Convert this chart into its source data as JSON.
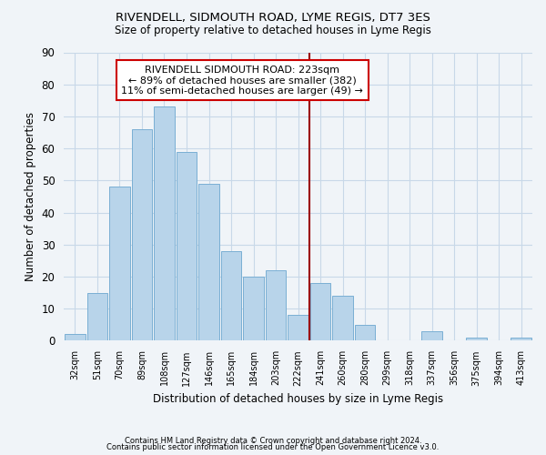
{
  "title": "RIVENDELL, SIDMOUTH ROAD, LYME REGIS, DT7 3ES",
  "subtitle": "Size of property relative to detached houses in Lyme Regis",
  "xlabel": "Distribution of detached houses by size in Lyme Regis",
  "ylabel": "Number of detached properties",
  "footnote1": "Contains HM Land Registry data © Crown copyright and database right 2024.",
  "footnote2": "Contains public sector information licensed under the Open Government Licence v3.0.",
  "bar_labels": [
    "32sqm",
    "51sqm",
    "70sqm",
    "89sqm",
    "108sqm",
    "127sqm",
    "146sqm",
    "165sqm",
    "184sqm",
    "203sqm",
    "222sqm",
    "241sqm",
    "260sqm",
    "280sqm",
    "299sqm",
    "318sqm",
    "337sqm",
    "356sqm",
    "375sqm",
    "394sqm",
    "413sqm"
  ],
  "bar_values": [
    2,
    15,
    48,
    66,
    73,
    59,
    49,
    28,
    20,
    22,
    8,
    18,
    14,
    5,
    0,
    0,
    3,
    0,
    1,
    0,
    1
  ],
  "bar_color": "#b8d4ea",
  "bar_edge_color": "#7aafd4",
  "highlight_line_color": "#9b0000",
  "annotation_text": "RIVENDELL SIDMOUTH ROAD: 223sqm\n← 89% of detached houses are smaller (382)\n11% of semi-detached houses are larger (49) →",
  "annotation_box_edge": "#cc0000",
  "ylim": [
    0,
    90
  ],
  "yticks": [
    0,
    10,
    20,
    30,
    40,
    50,
    60,
    70,
    80,
    90
  ],
  "background_color": "#f0f4f8",
  "plot_bg_color": "#f0f4f8",
  "grid_color": "#c8d8e8"
}
